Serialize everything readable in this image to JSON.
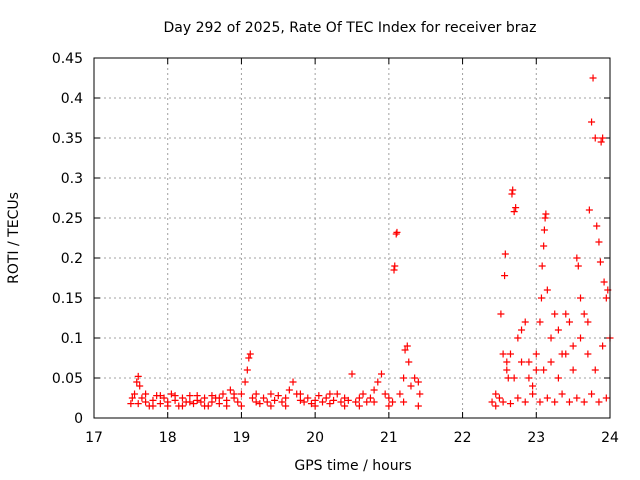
{
  "chart_data": {
    "type": "scatter",
    "title": "Day 292 of 2025, Rate Of TEC Index for receiver braz",
    "xlabel": "GPS time / hours",
    "ylabel": "ROTI / TECUs",
    "xlim": [
      17,
      24
    ],
    "ylim": [
      0,
      0.45
    ],
    "x_ticks": [
      17,
      18,
      19,
      20,
      21,
      22,
      23,
      24
    ],
    "x_tick_labels": [
      "17",
      "18",
      "19",
      "20",
      "21",
      "22",
      "23",
      "24"
    ],
    "y_ticks": [
      0,
      0.05,
      0.1,
      0.15,
      0.2,
      0.25,
      0.3,
      0.35,
      0.4,
      0.45
    ],
    "y_tick_labels": [
      "0",
      "0.05",
      "0.1",
      "0.15",
      "0.2",
      "0.25",
      "0.3",
      "0.35",
      "0.4",
      "0.45"
    ],
    "grid": true,
    "legend": "none",
    "marker": "plus",
    "color": "#ff0000",
    "series": [
      {
        "values": [
          [
            17.5,
            0.018
          ],
          [
            17.55,
            0.03
          ],
          [
            17.58,
            0.045
          ],
          [
            17.6,
            0.052
          ],
          [
            17.62,
            0.04
          ],
          [
            17.65,
            0.025
          ],
          [
            17.7,
            0.02
          ],
          [
            17.75,
            0.015
          ],
          [
            17.8,
            0.022
          ],
          [
            17.85,
            0.028
          ],
          [
            17.9,
            0.018
          ],
          [
            17.95,
            0.025
          ],
          [
            18.0,
            0.02
          ],
          [
            18.05,
            0.03
          ],
          [
            18.1,
            0.022
          ],
          [
            18.15,
            0.015
          ],
          [
            18.2,
            0.025
          ],
          [
            18.25,
            0.02
          ],
          [
            18.3,
            0.028
          ],
          [
            18.35,
            0.018
          ],
          [
            18.4,
            0.022
          ],
          [
            18.45,
            0.02
          ],
          [
            18.5,
            0.025
          ],
          [
            18.55,
            0.015
          ],
          [
            18.6,
            0.02
          ],
          [
            18.65,
            0.025
          ],
          [
            18.7,
            0.018
          ],
          [
            18.75,
            0.03
          ],
          [
            18.8,
            0.022
          ],
          [
            18.85,
            0.035
          ],
          [
            18.9,
            0.025
          ],
          [
            18.95,
            0.02
          ],
          [
            19.0,
            0.03
          ],
          [
            19.05,
            0.045
          ],
          [
            19.08,
            0.06
          ],
          [
            19.1,
            0.075
          ],
          [
            19.12,
            0.08
          ],
          [
            19.15,
            0.025
          ],
          [
            19.2,
            0.02
          ],
          [
            19.25,
            0.018
          ],
          [
            19.3,
            0.025
          ],
          [
            19.35,
            0.02
          ],
          [
            19.4,
            0.03
          ],
          [
            19.45,
            0.022
          ],
          [
            19.5,
            0.028
          ],
          [
            19.55,
            0.02
          ],
          [
            19.6,
            0.025
          ],
          [
            19.65,
            0.035
          ],
          [
            19.7,
            0.045
          ],
          [
            19.75,
            0.03
          ],
          [
            19.8,
            0.022
          ],
          [
            19.85,
            0.02
          ],
          [
            19.9,
            0.025
          ],
          [
            19.95,
            0.018
          ],
          [
            20.0,
            0.022
          ],
          [
            20.05,
            0.028
          ],
          [
            20.1,
            0.02
          ],
          [
            20.15,
            0.025
          ],
          [
            20.2,
            0.018
          ],
          [
            20.25,
            0.022
          ],
          [
            20.3,
            0.03
          ],
          [
            20.35,
            0.02
          ],
          [
            20.4,
            0.025
          ],
          [
            20.45,
            0.022
          ],
          [
            20.5,
            0.055
          ],
          [
            20.55,
            0.02
          ],
          [
            20.6,
            0.025
          ],
          [
            20.65,
            0.03
          ],
          [
            20.7,
            0.02
          ],
          [
            20.75,
            0.025
          ],
          [
            20.8,
            0.035
          ],
          [
            20.85,
            0.045
          ],
          [
            20.9,
            0.055
          ],
          [
            20.95,
            0.03
          ],
          [
            21.0,
            0.025
          ],
          [
            21.05,
            0.02
          ],
          [
            21.07,
            0.185
          ],
          [
            21.08,
            0.19
          ],
          [
            21.1,
            0.23
          ],
          [
            21.11,
            0.232
          ],
          [
            21.15,
            0.03
          ],
          [
            21.2,
            0.05
          ],
          [
            21.22,
            0.085
          ],
          [
            21.25,
            0.09
          ],
          [
            21.27,
            0.07
          ],
          [
            21.3,
            0.04
          ],
          [
            21.35,
            0.05
          ],
          [
            21.4,
            0.045
          ],
          [
            21.42,
            0.03
          ],
          [
            17.52,
            0.025
          ],
          [
            17.6,
            0.018
          ],
          [
            17.7,
            0.03
          ],
          [
            17.8,
            0.015
          ],
          [
            17.9,
            0.028
          ],
          [
            18.0,
            0.015
          ],
          [
            18.1,
            0.028
          ],
          [
            18.2,
            0.015
          ],
          [
            18.3,
            0.02
          ],
          [
            18.4,
            0.028
          ],
          [
            18.5,
            0.015
          ],
          [
            18.6,
            0.028
          ],
          [
            18.7,
            0.025
          ],
          [
            18.8,
            0.015
          ],
          [
            18.9,
            0.03
          ],
          [
            19.0,
            0.015
          ],
          [
            19.2,
            0.03
          ],
          [
            19.4,
            0.015
          ],
          [
            19.6,
            0.015
          ],
          [
            19.8,
            0.03
          ],
          [
            20.0,
            0.015
          ],
          [
            20.2,
            0.03
          ],
          [
            20.4,
            0.015
          ],
          [
            20.6,
            0.015
          ],
          [
            20.8,
            0.02
          ],
          [
            21.0,
            0.015
          ],
          [
            21.2,
            0.02
          ],
          [
            21.4,
            0.015
          ],
          [
            22.4,
            0.02
          ],
          [
            22.45,
            0.03
          ],
          [
            22.5,
            0.025
          ],
          [
            22.52,
            0.13
          ],
          [
            22.55,
            0.08
          ],
          [
            22.57,
            0.178
          ],
          [
            22.58,
            0.205
          ],
          [
            22.6,
            0.07
          ],
          [
            22.62,
            0.05
          ],
          [
            22.65,
            0.08
          ],
          [
            22.67,
            0.28
          ],
          [
            22.68,
            0.285
          ],
          [
            22.7,
            0.258
          ],
          [
            22.72,
            0.263
          ],
          [
            22.75,
            0.1
          ],
          [
            22.8,
            0.11
          ],
          [
            22.85,
            0.12
          ],
          [
            22.9,
            0.07
          ],
          [
            22.95,
            0.04
          ],
          [
            23.0,
            0.06
          ],
          [
            23.05,
            0.12
          ],
          [
            23.07,
            0.15
          ],
          [
            23.08,
            0.19
          ],
          [
            23.1,
            0.215
          ],
          [
            23.11,
            0.235
          ],
          [
            23.12,
            0.25
          ],
          [
            23.13,
            0.255
          ],
          [
            23.15,
            0.16
          ],
          [
            23.2,
            0.1
          ],
          [
            23.25,
            0.13
          ],
          [
            23.3,
            0.11
          ],
          [
            23.35,
            0.08
          ],
          [
            23.4,
            0.13
          ],
          [
            23.45,
            0.12
          ],
          [
            23.5,
            0.09
          ],
          [
            23.55,
            0.2
          ],
          [
            23.57,
            0.19
          ],
          [
            23.6,
            0.15
          ],
          [
            23.65,
            0.13
          ],
          [
            23.7,
            0.12
          ],
          [
            23.72,
            0.26
          ],
          [
            23.75,
            0.37
          ],
          [
            23.77,
            0.425
          ],
          [
            23.8,
            0.35
          ],
          [
            23.82,
            0.24
          ],
          [
            23.85,
            0.22
          ],
          [
            23.87,
            0.195
          ],
          [
            23.88,
            0.345
          ],
          [
            23.9,
            0.35
          ],
          [
            23.92,
            0.17
          ],
          [
            23.95,
            0.15
          ],
          [
            23.97,
            0.16
          ],
          [
            24.0,
            0.1
          ],
          [
            22.45,
            0.015
          ],
          [
            22.55,
            0.02
          ],
          [
            22.65,
            0.018
          ],
          [
            22.75,
            0.025
          ],
          [
            22.85,
            0.02
          ],
          [
            22.95,
            0.03
          ],
          [
            23.05,
            0.02
          ],
          [
            23.15,
            0.025
          ],
          [
            23.25,
            0.02
          ],
          [
            23.35,
            0.03
          ],
          [
            23.45,
            0.02
          ],
          [
            23.55,
            0.025
          ],
          [
            23.65,
            0.02
          ],
          [
            23.75,
            0.03
          ],
          [
            23.85,
            0.02
          ],
          [
            23.95,
            0.025
          ],
          [
            22.6,
            0.06
          ],
          [
            22.7,
            0.05
          ],
          [
            22.8,
            0.07
          ],
          [
            22.9,
            0.05
          ],
          [
            23.0,
            0.08
          ],
          [
            23.1,
            0.06
          ],
          [
            23.2,
            0.07
          ],
          [
            23.3,
            0.05
          ],
          [
            23.4,
            0.08
          ],
          [
            23.5,
            0.06
          ],
          [
            23.6,
            0.1
          ],
          [
            23.7,
            0.08
          ],
          [
            23.8,
            0.06
          ],
          [
            23.9,
            0.09
          ]
        ]
      }
    ]
  }
}
